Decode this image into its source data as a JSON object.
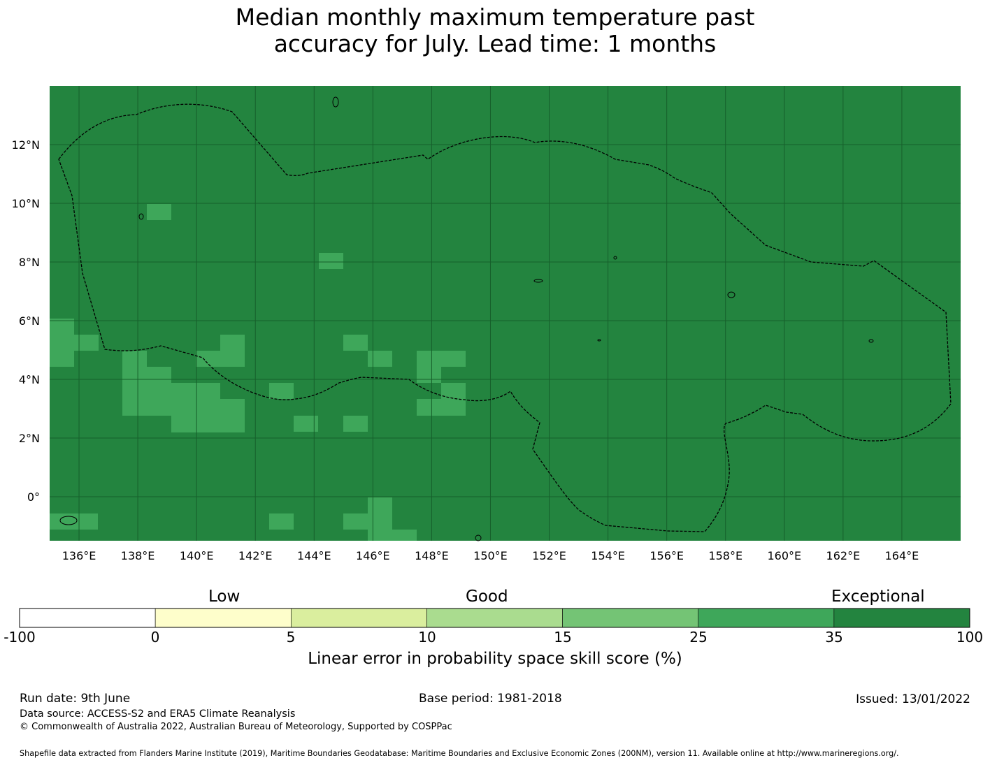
{
  "title_line1": "Median monthly maximum temperature past",
  "title_line2": "accuracy for July. Lead time: 1 months",
  "map": {
    "lon_range": [
      135,
      166
    ],
    "lat_range": [
      -1.5,
      14
    ],
    "background_color": "#23843f",
    "grid_color": "#165f2b",
    "lon_ticks": [
      136,
      138,
      140,
      142,
      144,
      146,
      148,
      150,
      152,
      154,
      156,
      158,
      160,
      162,
      164
    ],
    "lon_labels": [
      "136°E",
      "138°E",
      "140°E",
      "142°E",
      "144°E",
      "146°E",
      "148°E",
      "150°E",
      "152°E",
      "154°E",
      "156°E",
      "158°E",
      "160°E",
      "162°E",
      "164°E"
    ],
    "lat_ticks": [
      12,
      10,
      8,
      6,
      4,
      2,
      0
    ],
    "lat_labels": [
      "12°N",
      "10°N",
      "8°N",
      "6°N",
      "4°N",
      "2°N",
      "0°"
    ],
    "lighter_cell_color": "#3ea75a",
    "lighter_cells_note_category": "25 to 35",
    "eez_boundary": "dashed"
  },
  "colorbar": {
    "group_labels": [
      "Low",
      "Good",
      "Exceptional"
    ],
    "boundaries": [
      "-100",
      "0",
      "5",
      "10",
      "15",
      "25",
      "35",
      "100"
    ],
    "colors": [
      "#ffffff",
      "#fefecb",
      "#daee9e",
      "#aadc8f",
      "#74c475",
      "#3ea75a",
      "#23843f"
    ],
    "label": "Linear error in probability space skill score (%)"
  },
  "footer": {
    "run_date": "Run date: 9th June",
    "base_period": "Base period: 1981-2018",
    "issued": "Issued: 13/01/2022",
    "data_source": "Data source: ACCESS-S2 and ERA5 Climate Reanalysis",
    "copyright": "© Commonwealth of Australia 2022, Australian Bureau of Meteorology, Supported by COSPPac",
    "shapefile": "Shapefile data extracted from Flanders Marine Institute (2019), Maritime Boundaries Geodatabase: Maritime Boundaries and Exclusive Economic Zones (200NM), version 11. Available online at http://www.marineregions.org/."
  }
}
